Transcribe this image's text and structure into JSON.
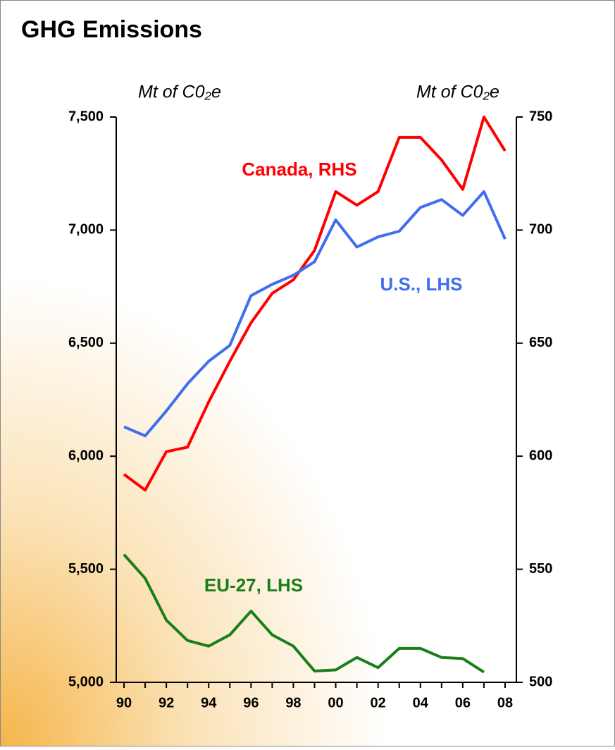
{
  "chart_data": {
    "type": "line",
    "title": "GHG Emissions",
    "y_label": "Mt of C0₂e",
    "y2_label": "Mt of C0₂e",
    "categories": [
      "90",
      null,
      "92",
      null,
      "94",
      null,
      "96",
      null,
      "98",
      null,
      "00",
      null,
      "02",
      null,
      "04",
      null,
      "06",
      null,
      "08"
    ],
    "series": [
      {
        "name": "Canada, RHS",
        "color": "#ff0000",
        "axis": "y2",
        "values": [
          592,
          585,
          602,
          604,
          624,
          642,
          659,
          672,
          678,
          691,
          717,
          711,
          717,
          741,
          741,
          731,
          718,
          750,
          735
        ]
      },
      {
        "name": "U.S., LHS",
        "color": "#3f6ef0",
        "values": [
          6130,
          6090,
          6200,
          6320,
          6420,
          6490,
          6710,
          6760,
          6800,
          6860,
          7045,
          6925,
          6970,
          6995,
          7100,
          7135,
          7065,
          7170,
          6960
        ]
      },
      {
        "name": "EU-27, LHS",
        "color": "#1a7f1a",
        "values": [
          5565,
          5460,
          5275,
          5185,
          5160,
          5210,
          5315,
          5210,
          5160,
          5050,
          5055,
          5110,
          5065,
          5150,
          5150,
          5110,
          5105,
          5045,
          null
        ]
      }
    ],
    "ylim": [
      5000,
      7500
    ],
    "yticks": [
      {
        "value": 5000,
        "label": "5,000"
      },
      {
        "value": 5500,
        "label": "5,500"
      },
      {
        "value": 6000,
        "label": "6,000"
      },
      {
        "value": 6500,
        "label": "6,500"
      },
      {
        "value": 7000,
        "label": "7,000"
      },
      {
        "value": 7500,
        "label": "7,500"
      }
    ],
    "y2lim": [
      500,
      750
    ],
    "y2ticks": [
      500,
      550,
      600,
      650,
      700,
      750
    ],
    "grid": false
  }
}
